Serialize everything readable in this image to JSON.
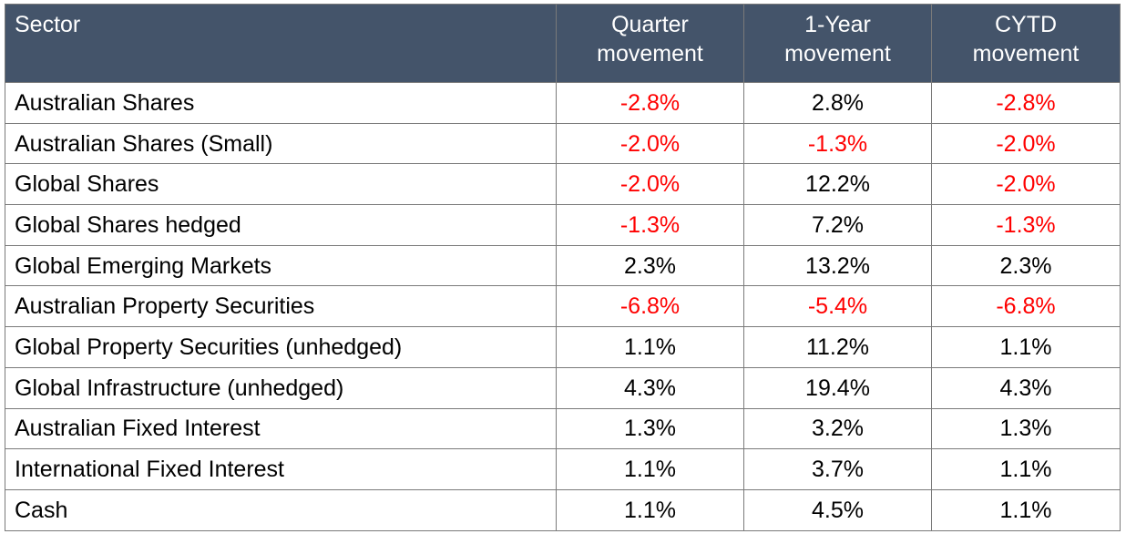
{
  "chart_data": {
    "type": "table",
    "columns": [
      {
        "key": "sector",
        "lines": [
          "Sector"
        ]
      },
      {
        "key": "quarter",
        "lines": [
          "Quarter",
          "movement"
        ]
      },
      {
        "key": "year1",
        "lines": [
          "1-Year",
          "movement"
        ]
      },
      {
        "key": "cytd",
        "lines": [
          "CYTD",
          "movement"
        ]
      }
    ],
    "rows": [
      {
        "sector": "Australian Shares",
        "quarter": "-2.8%",
        "year1": "2.8%",
        "cytd": "-2.8%"
      },
      {
        "sector": "Australian Shares (Small)",
        "quarter": "-2.0%",
        "year1": "-1.3%",
        "cytd": "-2.0%"
      },
      {
        "sector": "Global Shares",
        "quarter": "-2.0%",
        "year1": "12.2%",
        "cytd": "-2.0%"
      },
      {
        "sector": "Global Shares hedged",
        "quarter": "-1.3%",
        "year1": "7.2%",
        "cytd": "-1.3%"
      },
      {
        "sector": "Global Emerging Markets",
        "quarter": "2.3%",
        "year1": "13.2%",
        "cytd": "2.3%"
      },
      {
        "sector": "Australian Property Securities",
        "quarter": "-6.8%",
        "year1": "-5.4%",
        "cytd": "-6.8%"
      },
      {
        "sector": "Global Property Securities (unhedged)",
        "quarter": "1.1%",
        "year1": "11.2%",
        "cytd": "1.1%"
      },
      {
        "sector": "Global Infrastructure (unhedged)",
        "quarter": "4.3%",
        "year1": "19.4%",
        "cytd": "4.3%"
      },
      {
        "sector": "Australian Fixed Interest",
        "quarter": "1.3%",
        "year1": "3.2%",
        "cytd": "1.3%"
      },
      {
        "sector": "International Fixed Interest",
        "quarter": "1.1%",
        "year1": "3.7%",
        "cytd": "1.1%"
      },
      {
        "sector": "Cash",
        "quarter": "1.1%",
        "year1": "4.5%",
        "cytd": "1.1%"
      }
    ]
  },
  "colors": {
    "header_background": "#44546a",
    "header_text": "#ffffff",
    "negative_value": "#ff0000",
    "positive_value": "#000000",
    "grid_line": "#7a7a7a"
  }
}
